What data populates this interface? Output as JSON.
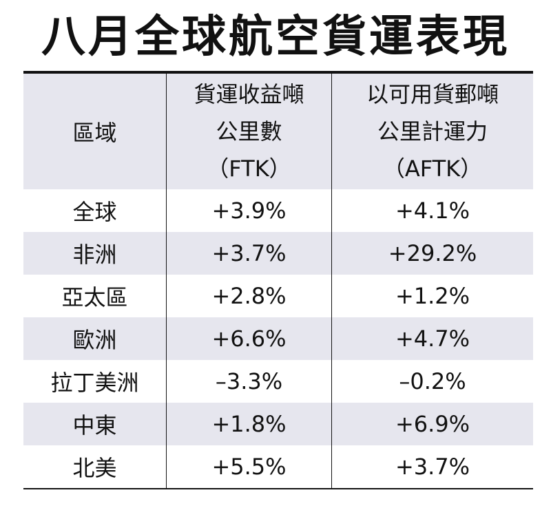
{
  "title": "八月全球航空貨運表現",
  "header": {
    "region": "區域",
    "ftk_line1": "貨運收益噸",
    "ftk_line2": "公里數",
    "ftk_line3": "（FTK）",
    "aftk_line1": "以可用貨郵噸",
    "aftk_line2": "公里計運力",
    "aftk_line3": "（AFTK）"
  },
  "rows": [
    {
      "region": "全球",
      "ftk": "+3.9%",
      "aftk": "+4.1%"
    },
    {
      "region": "非洲",
      "ftk": "+3.7%",
      "aftk": "+29.2%"
    },
    {
      "region": "亞太區",
      "ftk": "+2.8%",
      "aftk": "+1.2%"
    },
    {
      "region": "歐洲",
      "ftk": "+6.6%",
      "aftk": "+4.7%"
    },
    {
      "region": "拉丁美洲",
      "ftk": "–3.3%",
      "aftk": "–0.2%"
    },
    {
      "region": "中東",
      "ftk": "+1.8%",
      "aftk": "+6.9%"
    },
    {
      "region": "北美",
      "ftk": "+5.5%",
      "aftk": "+3.7%"
    }
  ],
  "colors": {
    "shade": "#e6e6ee",
    "text": "#111111"
  }
}
